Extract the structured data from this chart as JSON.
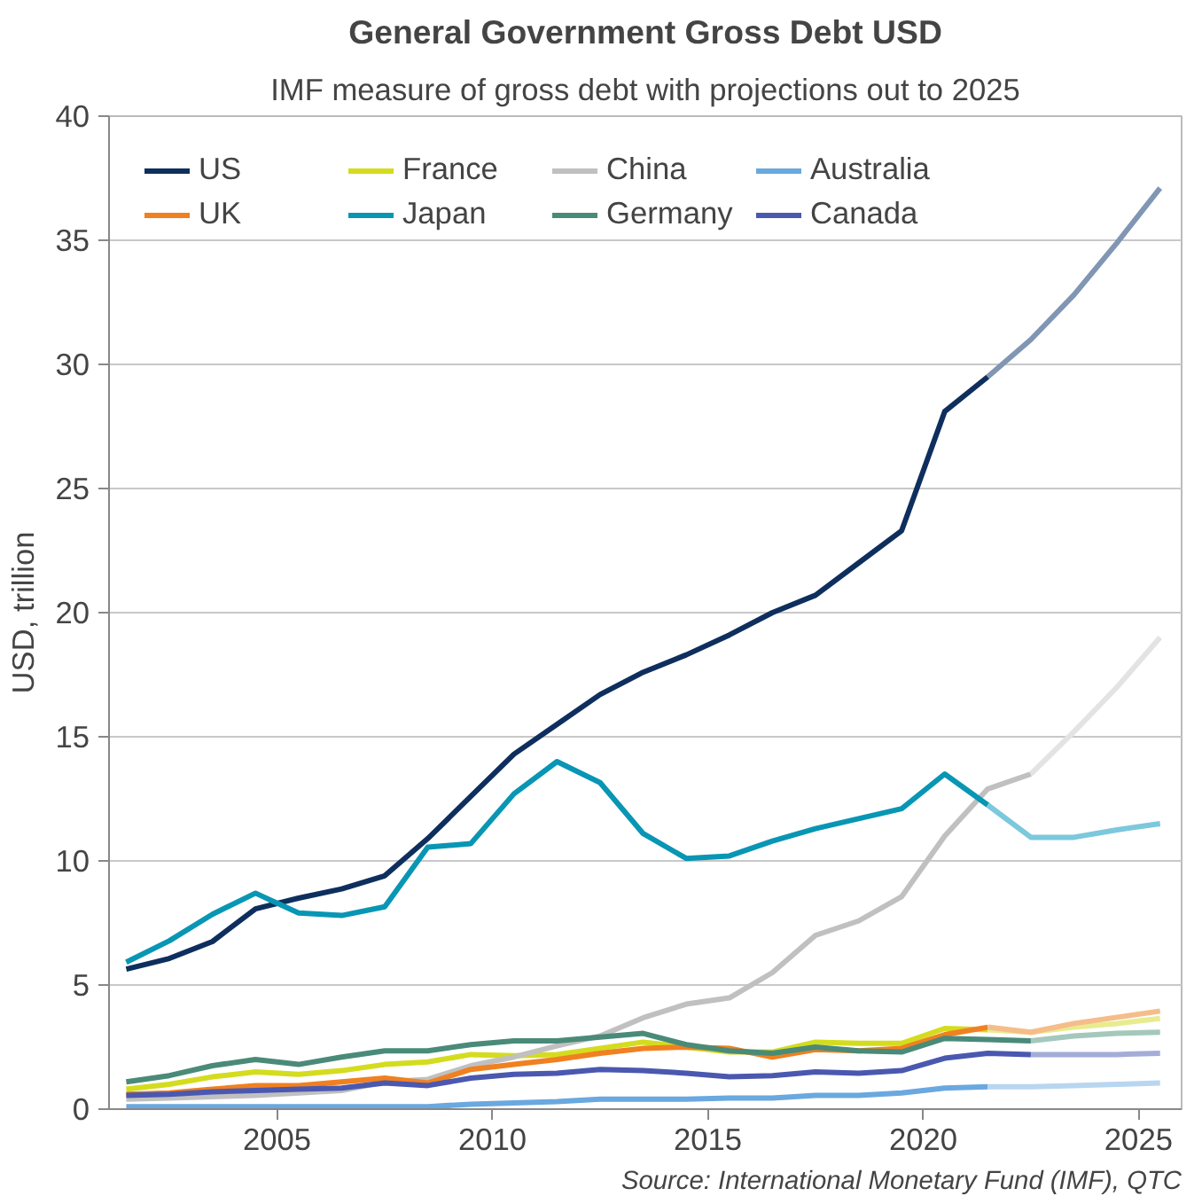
{
  "chart_data": {
    "type": "line",
    "title": "General Government Gross Debt USD",
    "subtitle": "IMF measure of gross debt with projections out to 2025",
    "ylabel": "USD, trillion",
    "annotations": [
      "Source: International Monetary Fund (IMF), QTC"
    ],
    "x": [
      2001.5,
      2002.5,
      2003.5,
      2004.5,
      2005.5,
      2006.5,
      2007.5,
      2008.5,
      2009.5,
      2010.5,
      2011.5,
      2012.5,
      2013.5,
      2014.5,
      2015.5,
      2016.5,
      2017.5,
      2018.5,
      2019.5,
      2020.5,
      2021.5
    ],
    "xlim": [
      2001.1,
      2026
    ],
    "xticks": [
      2005,
      2010,
      2015,
      2020,
      2025
    ],
    "ylim": [
      0,
      40
    ],
    "yticks": [
      0,
      5,
      10,
      15,
      20,
      25,
      30,
      35,
      40
    ],
    "grid": "y",
    "legend": "top left",
    "line_style": "solid",
    "series": [
      {
        "name": "US",
        "color": "#0e2f5e",
        "values": [
          5.64,
          6.07,
          6.75,
          8.07,
          8.5,
          8.87,
          9.4,
          10.9,
          12.6,
          14.3,
          15.5,
          16.7,
          17.6,
          18.3,
          19.1,
          20.0,
          20.7,
          22.0,
          23.3,
          28.1,
          29.5
        ]
      },
      {
        "name": "France",
        "color": "#d4dc1e",
        "values": [
          0.8,
          1.0,
          1.3,
          1.5,
          1.4,
          1.55,
          1.8,
          1.9,
          2.2,
          2.15,
          2.2,
          2.45,
          2.7,
          2.5,
          2.3,
          2.3,
          2.7,
          2.65,
          2.65,
          3.25,
          3.2
        ]
      },
      {
        "name": "China",
        "color": "#c0c0c0",
        "x": [
          2001.5,
          2002.5,
          2003.5,
          2004.5,
          2005.5,
          2006.5,
          2007.5,
          2008.5,
          2009.5,
          2010.5,
          2011.5,
          2012.5,
          2013.5,
          2014.5,
          2015.5,
          2016.5,
          2017.5,
          2018.5,
          2019.5,
          2020.5,
          2021.5,
          2022.5
        ],
        "values": [
          0.4,
          0.45,
          0.5,
          0.55,
          0.65,
          0.75,
          1.1,
          1.2,
          1.75,
          2.1,
          2.55,
          2.95,
          3.68,
          4.23,
          4.48,
          5.5,
          7.0,
          7.58,
          8.56,
          11.0,
          12.9,
          13.5
        ]
      },
      {
        "name": "Australia",
        "color": "#6aa8e0",
        "values": [
          0.1,
          0.1,
          0.1,
          0.1,
          0.1,
          0.1,
          0.1,
          0.1,
          0.2,
          0.25,
          0.3,
          0.4,
          0.4,
          0.4,
          0.45,
          0.45,
          0.55,
          0.55,
          0.65,
          0.85,
          0.9
        ]
      },
      {
        "name": "UK",
        "color": "#f08020",
        "values": [
          0.6,
          0.65,
          0.8,
          0.95,
          0.95,
          1.1,
          1.25,
          1.05,
          1.6,
          1.8,
          2.0,
          2.25,
          2.45,
          2.5,
          2.45,
          2.1,
          2.4,
          2.35,
          2.45,
          3.0,
          3.3
        ]
      },
      {
        "name": "Japan",
        "color": "#0896b4",
        "values": [
          5.92,
          6.78,
          7.85,
          8.7,
          7.9,
          7.8,
          8.15,
          10.55,
          10.7,
          12.7,
          14.0,
          13.15,
          11.1,
          10.1,
          10.2,
          10.8,
          11.3,
          11.7,
          12.1,
          13.5,
          12.25
        ]
      },
      {
        "name": "Germany",
        "color": "#4a8a78",
        "x": [
          2001.5,
          2002.5,
          2003.5,
          2004.5,
          2005.5,
          2006.5,
          2007.5,
          2008.5,
          2009.5,
          2010.5,
          2011.5,
          2012.5,
          2013.5,
          2014.5,
          2015.5,
          2016.5,
          2017.5,
          2018.5,
          2019.5,
          2020.5,
          2021.5,
          2022.5
        ],
        "values": [
          1.1,
          1.35,
          1.75,
          2.0,
          1.8,
          2.1,
          2.35,
          2.35,
          2.6,
          2.75,
          2.75,
          2.9,
          3.05,
          2.6,
          2.35,
          2.25,
          2.5,
          2.35,
          2.3,
          2.85,
          2.8,
          2.75
        ]
      },
      {
        "name": "Canada",
        "color": "#4a58b0",
        "x": [
          2001.5,
          2002.5,
          2003.5,
          2004.5,
          2005.5,
          2006.5,
          2007.5,
          2008.5,
          2009.5,
          2010.5,
          2011.5,
          2012.5,
          2013.5,
          2014.5,
          2015.5,
          2016.5,
          2017.5,
          2018.5,
          2019.5,
          2020.5,
          2021.5,
          2022.5
        ],
        "values": [
          0.55,
          0.6,
          0.7,
          0.75,
          0.8,
          0.85,
          1.05,
          0.95,
          1.25,
          1.4,
          1.45,
          1.6,
          1.55,
          1.45,
          1.3,
          1.35,
          1.5,
          1.45,
          1.55,
          2.05,
          2.25,
          2.2
        ]
      },
      {
        "color": "#8096b4",
        "x": [
          2021.5,
          2022.5,
          2023.5,
          2024.5,
          2025.5
        ],
        "values": [
          29.5,
          31.0,
          32.8,
          34.9,
          37.1
        ]
      },
      {
        "color": "#e8ec90",
        "x": [
          2021.5,
          2022.5,
          2023.5,
          2024.5,
          2025.5
        ],
        "values": [
          3.2,
          3.1,
          3.3,
          3.45,
          3.65
        ]
      },
      {
        "color": "#e3e3e3",
        "x": [
          2022.5,
          2023.5,
          2024.5,
          2025.5
        ],
        "values": [
          13.5,
          15.2,
          17.0,
          19.0
        ]
      },
      {
        "color": "#b8d6f0",
        "x": [
          2021.5,
          2022.5,
          2023.5,
          2024.5,
          2025.5
        ],
        "values": [
          0.9,
          0.9,
          0.95,
          1.0,
          1.05
        ]
      },
      {
        "color": "#f5bd8a",
        "x": [
          2021.5,
          2022.5,
          2023.5,
          2024.5,
          2025.5
        ],
        "values": [
          3.3,
          3.1,
          3.45,
          3.7,
          3.95
        ]
      },
      {
        "color": "#7cc8dc",
        "x": [
          2021.5,
          2022.5,
          2023.5,
          2024.5,
          2025.5
        ],
        "values": [
          12.25,
          10.95,
          10.95,
          11.25,
          11.5
        ]
      },
      {
        "color": "#a4c8bc",
        "x": [
          2022.5,
          2023.5,
          2024.5,
          2025.5
        ],
        "values": [
          2.75,
          2.95,
          3.05,
          3.1
        ]
      },
      {
        "color": "#a4acd8",
        "x": [
          2022.5,
          2023.5,
          2024.5,
          2025.5
        ],
        "values": [
          2.2,
          2.2,
          2.2,
          2.25
        ]
      }
    ]
  }
}
